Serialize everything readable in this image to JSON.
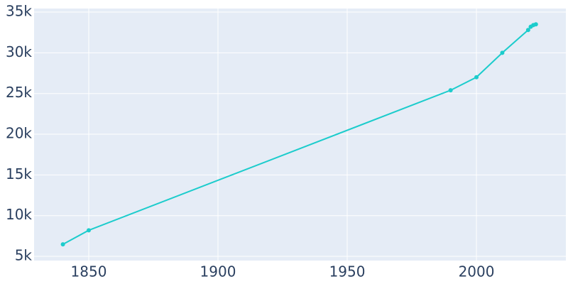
{
  "chart_data": {
    "type": "line",
    "x": [
      1840,
      1850,
      1990,
      2000,
      2010,
      2020,
      2021,
      2022,
      2023
    ],
    "series": [
      {
        "color": "#1ccccc",
        "values": [
          6480,
          8200,
          25400,
          27000,
          30000,
          32800,
          33200,
          33400,
          33500
        ]
      }
    ],
    "xlim": [
      1828.85,
      2034.6
    ],
    "ylim": [
      4480,
      35440
    ],
    "xticks": [
      1850,
      1900,
      1950,
      2000
    ],
    "yticks": [
      {
        "value": 5000,
        "label": "5k"
      },
      {
        "value": 10000,
        "label": "10k"
      },
      {
        "value": 15000,
        "label": "15k"
      },
      {
        "value": 20000,
        "label": "20k"
      },
      {
        "value": 25000,
        "label": "25k"
      },
      {
        "value": 30000,
        "label": "30k"
      },
      {
        "value": 35000,
        "label": "35k"
      }
    ],
    "grid": true,
    "background": "#e5ecf6"
  }
}
